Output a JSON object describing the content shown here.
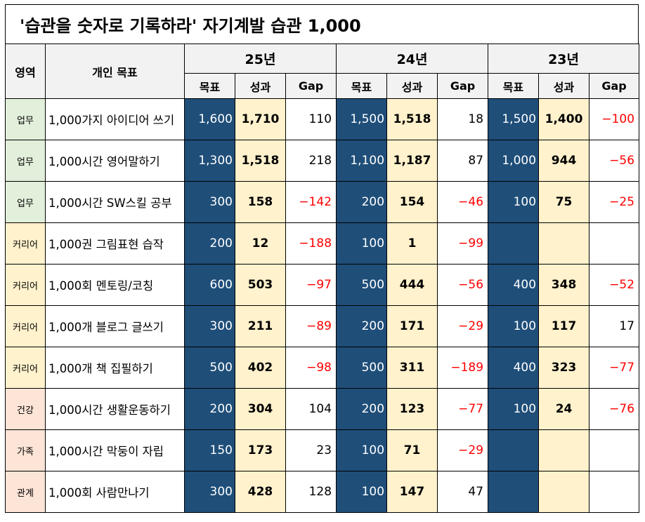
{
  "title": "'습관을 숫자로 기록하라'  자기계발 습관 1,000",
  "headers": {
    "area": "영역",
    "goal_name": "개인 목표",
    "years": [
      "25년",
      "24년",
      "23년"
    ],
    "sub": [
      "목표",
      "성과",
      "Gap"
    ]
  },
  "rows": [
    {
      "area": "업무",
      "area_type": "work",
      "name": "1,000가지 아이디어 쓰기",
      "y25": {
        "goal": "1,600",
        "result": "1,710",
        "gap": "110",
        "neg": false
      },
      "y24": {
        "goal": "1,500",
        "result": "1,518",
        "gap": "18",
        "neg": false
      },
      "y23": {
        "goal": "1,500",
        "result": "1,400",
        "gap": "−100",
        "neg": true
      }
    },
    {
      "area": "업무",
      "area_type": "work",
      "name": "1,000시간 영어말하기",
      "y25": {
        "goal": "1,300",
        "result": "1,518",
        "gap": "218",
        "neg": false
      },
      "y24": {
        "goal": "1,100",
        "result": "1,187",
        "gap": "87",
        "neg": false
      },
      "y23": {
        "goal": "1,000",
        "result": "944",
        "gap": "−56",
        "neg": true
      }
    },
    {
      "area": "업무",
      "area_type": "work",
      "name": "1,000시간 SW스킬 공부",
      "y25": {
        "goal": "300",
        "result": "158",
        "gap": "−142",
        "neg": true
      },
      "y24": {
        "goal": "200",
        "result": "154",
        "gap": "−46",
        "neg": true
      },
      "y23": {
        "goal": "100",
        "result": "75",
        "gap": "−25",
        "neg": true
      }
    },
    {
      "area": "커리어",
      "area_type": "career",
      "name": "1,000권 그림표현 습작",
      "y25": {
        "goal": "200",
        "result": "12",
        "gap": "−188",
        "neg": true
      },
      "y24": {
        "goal": "100",
        "result": "1",
        "gap": "−99",
        "neg": true
      },
      "y23": {
        "goal": "",
        "result": "",
        "gap": "",
        "neg": false
      }
    },
    {
      "area": "커리어",
      "area_type": "career",
      "name": "1,000회 멘토링/코칭",
      "y25": {
        "goal": "600",
        "result": "503",
        "gap": "−97",
        "neg": true
      },
      "y24": {
        "goal": "500",
        "result": "444",
        "gap": "−56",
        "neg": true
      },
      "y23": {
        "goal": "400",
        "result": "348",
        "gap": "−52",
        "neg": true
      }
    },
    {
      "area": "커리어",
      "area_type": "career",
      "name": "1,000개 블로그 글쓰기",
      "y25": {
        "goal": "300",
        "result": "211",
        "gap": "−89",
        "neg": true
      },
      "y24": {
        "goal": "200",
        "result": "171",
        "gap": "−29",
        "neg": true
      },
      "y23": {
        "goal": "100",
        "result": "117",
        "gap": "17",
        "neg": false
      }
    },
    {
      "area": "커리어",
      "area_type": "career",
      "name": "1,000개 책 집필하기",
      "y25": {
        "goal": "500",
        "result": "402",
        "gap": "−98",
        "neg": true
      },
      "y24": {
        "goal": "500",
        "result": "311",
        "gap": "−189",
        "neg": true
      },
      "y23": {
        "goal": "400",
        "result": "323",
        "gap": "−77",
        "neg": true
      }
    },
    {
      "area": "건강",
      "area_type": "health",
      "name": "1,000시간 생활운동하기",
      "y25": {
        "goal": "200",
        "result": "304",
        "gap": "104",
        "neg": false
      },
      "y24": {
        "goal": "200",
        "result": "123",
        "gap": "−77",
        "neg": true
      },
      "y23": {
        "goal": "100",
        "result": "24",
        "gap": "−76",
        "neg": true
      }
    },
    {
      "area": "가족",
      "area_type": "family",
      "name": "1,000시간 막둥이 자립",
      "y25": {
        "goal": "150",
        "result": "173",
        "gap": "23",
        "neg": false
      },
      "y24": {
        "goal": "100",
        "result": "71",
        "gap": "−29",
        "neg": true
      },
      "y23": {
        "goal": "",
        "result": "",
        "gap": "",
        "neg": false
      }
    },
    {
      "area": "관계",
      "area_type": "relation",
      "name": "1,000회 사람만나기",
      "y25": {
        "goal": "300",
        "result": "428",
        "gap": "128",
        "neg": false
      },
      "y24": {
        "goal": "100",
        "result": "147",
        "gap": "47",
        "neg": false
      },
      "y23": {
        "goal": "",
        "result": "",
        "gap": "",
        "neg": false
      }
    }
  ]
}
